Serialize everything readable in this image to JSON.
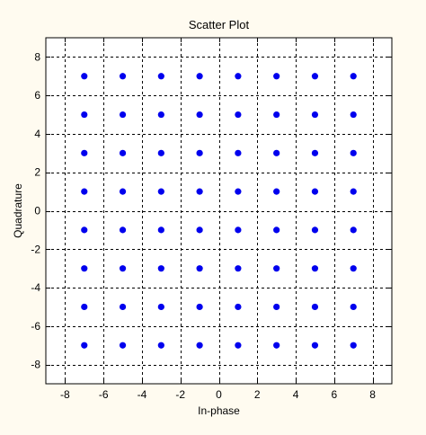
{
  "chart_data": {
    "type": "scatter",
    "title": "Scatter Plot",
    "xlabel": "In-phase",
    "ylabel": "Quadrature",
    "xlim": [
      -9,
      9
    ],
    "ylim": [
      -9,
      9
    ],
    "xticks": [
      -8,
      -6,
      -4,
      -2,
      0,
      2,
      4,
      6,
      8
    ],
    "yticks": [
      -8,
      -6,
      -4,
      -2,
      0,
      2,
      4,
      6,
      8
    ],
    "grid": true,
    "grid_style": "dashed",
    "marker_color": "#0000ee",
    "x": [
      -7,
      -5,
      -3,
      -1,
      1,
      3,
      5,
      7,
      -7,
      -5,
      -3,
      -1,
      1,
      3,
      5,
      7,
      -7,
      -5,
      -3,
      -1,
      1,
      3,
      5,
      7,
      -7,
      -5,
      -3,
      -1,
      1,
      3,
      5,
      7,
      -7,
      -5,
      -3,
      -1,
      1,
      3,
      5,
      7,
      -7,
      -5,
      -3,
      -1,
      1,
      3,
      5,
      7,
      -7,
      -5,
      -3,
      -1,
      1,
      3,
      5,
      7,
      -7,
      -5,
      -3,
      -1,
      1,
      3,
      5,
      7
    ],
    "y": [
      7,
      7,
      7,
      7,
      7,
      7,
      7,
      7,
      5,
      5,
      5,
      5,
      5,
      5,
      5,
      5,
      3,
      3,
      3,
      3,
      3,
      3,
      3,
      3,
      1,
      1,
      1,
      1,
      1,
      1,
      1,
      1,
      -1,
      -1,
      -1,
      -1,
      -1,
      -1,
      -1,
      -1,
      -3,
      -3,
      -3,
      -3,
      -3,
      -3,
      -3,
      -3,
      -5,
      -5,
      -5,
      -5,
      -5,
      -5,
      -5,
      -5,
      -7,
      -7,
      -7,
      -7,
      -7,
      -7,
      -7,
      -7
    ]
  }
}
